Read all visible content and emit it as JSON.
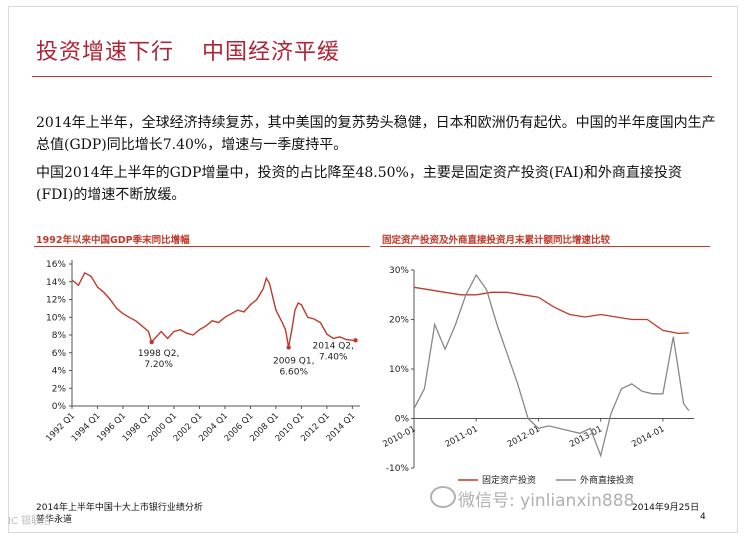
{
  "slide": {
    "title_left": "投资增速下行",
    "title_right": "中国经济平缓",
    "paragraph1": "2014年上半年，全球经济持续复苏，其中美国的复苏势头稳健，日本和欧洲仍有起伏。中国的半年度国内生产总值(GDP)同比增长7.40%，增速与一季度持平。",
    "paragraph2": "中国2014年上半年的GDP增量中，投资的占比降至48.50%，主要是固定资产投资(FAI)和外商直接投资(FDI)的增速不断放缓。",
    "footer_left_1": "2014年上半年中国十大上市银行业绩分析",
    "footer_left_2": "普华永道",
    "footer_date": "2014年9月25日",
    "page_number": "4",
    "watermark": "微信号: yinlianxin888",
    "corner_watermark": "IC 银联信",
    "colors": {
      "accent": "#b22234",
      "gdp_line": "#c0392b",
      "fai_line": "#c0392b",
      "fdi_line": "#888888"
    }
  },
  "chart_data": [
    {
      "type": "line",
      "title": "1992年以来中国GDP季末同比增幅",
      "ylim": [
        0,
        16
      ],
      "yticks": [
        "0%",
        "2%",
        "4%",
        "6%",
        "8%",
        "10%",
        "12%",
        "14%",
        "16%"
      ],
      "xticks": [
        "1992 Q1",
        "1994 Q1",
        "1996 Q1",
        "1998 Q1",
        "2000 Q1",
        "2002 Q1",
        "2004 Q1",
        "2006 Q1",
        "2008 Q1",
        "2010 Q1",
        "2012 Q1",
        "2014 Q1"
      ],
      "grid": false,
      "series": [
        {
          "x": [
            1992.0,
            1992.5,
            1993.0,
            1993.5,
            1994.0,
            1994.5,
            1995.0,
            1995.5,
            1996.0,
            1996.5,
            1997.0,
            1997.5,
            1998.0,
            1998.25,
            1998.5,
            1999.0,
            1999.5,
            2000.0,
            2000.5,
            2001.0,
            2001.5,
            2002.0,
            2002.5,
            2003.0,
            2003.5,
            2004.0,
            2004.5,
            2005.0,
            2005.5,
            2006.0,
            2006.5,
            2007.0,
            2007.25,
            2007.5,
            2008.0,
            2008.5,
            2008.75,
            2009.0,
            2009.25,
            2009.5,
            2009.75,
            2010.0,
            2010.5,
            2011.0,
            2011.5,
            2012.0,
            2012.5,
            2013.0,
            2013.5,
            2014.0,
            2014.25
          ],
          "values": [
            14.2,
            13.6,
            15.0,
            14.6,
            13.4,
            12.8,
            12.0,
            11.0,
            10.4,
            10.0,
            9.6,
            9.0,
            8.4,
            7.2,
            7.6,
            8.4,
            7.6,
            8.4,
            8.6,
            8.2,
            8.0,
            8.6,
            9.0,
            9.6,
            9.4,
            10.0,
            10.4,
            10.8,
            10.6,
            11.4,
            12.0,
            13.2,
            14.4,
            13.8,
            10.8,
            9.4,
            8.6,
            6.6,
            8.6,
            10.8,
            11.6,
            11.4,
            10.0,
            9.8,
            9.4,
            8.1,
            7.6,
            7.8,
            7.5,
            7.4,
            7.4
          ]
        }
      ],
      "annotations": [
        {
          "lines": [
            "1998 Q2,",
            "7.20%"
          ]
        },
        {
          "lines": [
            "2009 Q1,",
            "6.60%"
          ]
        },
        {
          "lines": [
            "2014 Q2,",
            "7.40%"
          ]
        }
      ]
    },
    {
      "type": "line",
      "title": "固定资产投资及外商直接投资月末累计额同比增速比较",
      "ylim": [
        -10,
        30
      ],
      "yticks": [
        "-10%",
        "0%",
        "10%",
        "20%",
        "30%"
      ],
      "xticks": [
        "2010-01",
        "2011-01",
        "2012-01",
        "2013-01",
        "2014-01"
      ],
      "grid": false,
      "legend": "bottom",
      "series": [
        {
          "name": "固定资产投资",
          "x": [
            "2010-01",
            "2010-04",
            "2010-07",
            "2010-10",
            "2011-01",
            "2011-04",
            "2011-07",
            "2011-10",
            "2012-01",
            "2012-04",
            "2012-07",
            "2012-10",
            "2013-01",
            "2013-04",
            "2013-07",
            "2013-10",
            "2014-01",
            "2014-04",
            "2014-06"
          ],
          "values": [
            26.5,
            26.0,
            25.5,
            25.0,
            25.0,
            25.5,
            25.5,
            25.0,
            24.5,
            22.5,
            21.0,
            20.5,
            21.0,
            20.5,
            20.0,
            20.0,
            17.8,
            17.2,
            17.3
          ]
        },
        {
          "name": "外商直接投资",
          "x": [
            "2010-01",
            "2010-03",
            "2010-05",
            "2010-07",
            "2010-09",
            "2010-11",
            "2011-01",
            "2011-03",
            "2011-05",
            "2011-07",
            "2011-09",
            "2011-11",
            "2012-01",
            "2012-03",
            "2012-05",
            "2012-07",
            "2012-09",
            "2012-11",
            "2013-01",
            "2013-03",
            "2013-05",
            "2013-07",
            "2013-09",
            "2013-11",
            "2014-01",
            "2014-03",
            "2014-05",
            "2014-06"
          ],
          "values": [
            2.0,
            6.0,
            19.0,
            14.0,
            19.0,
            25.0,
            29.0,
            26.0,
            19.0,
            13.0,
            7.0,
            0.0,
            -2.0,
            -1.5,
            -2.0,
            -2.5,
            -3.0,
            -2.0,
            -7.5,
            1.0,
            6.0,
            7.0,
            5.5,
            5.0,
            5.0,
            16.5,
            3.0,
            1.6
          ]
        }
      ]
    }
  ]
}
